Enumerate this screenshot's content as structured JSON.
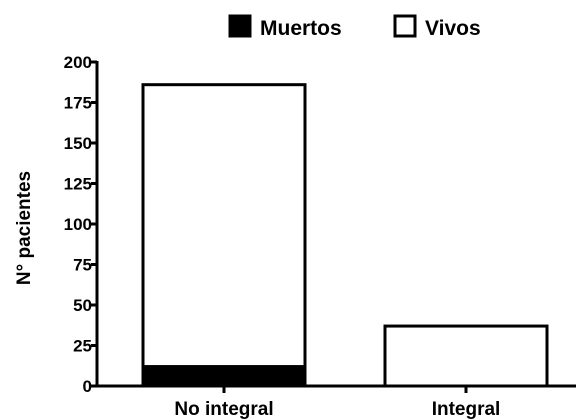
{
  "chart_data": {
    "type": "bar",
    "stacked": true,
    "categories": [
      "No integral",
      "Integral"
    ],
    "series": [
      {
        "name": "Muertos",
        "values": [
          12,
          0
        ],
        "color": "#000000"
      },
      {
        "name": "Vivos",
        "values": [
          174,
          37
        ],
        "color": "#ffffff"
      }
    ],
    "ylabel": "N° pacientes",
    "ylim": [
      0,
      200
    ],
    "yticks": [
      0,
      25,
      50,
      75,
      100,
      125,
      150,
      175,
      200
    ],
    "grid": false,
    "legend": "top-right"
  }
}
